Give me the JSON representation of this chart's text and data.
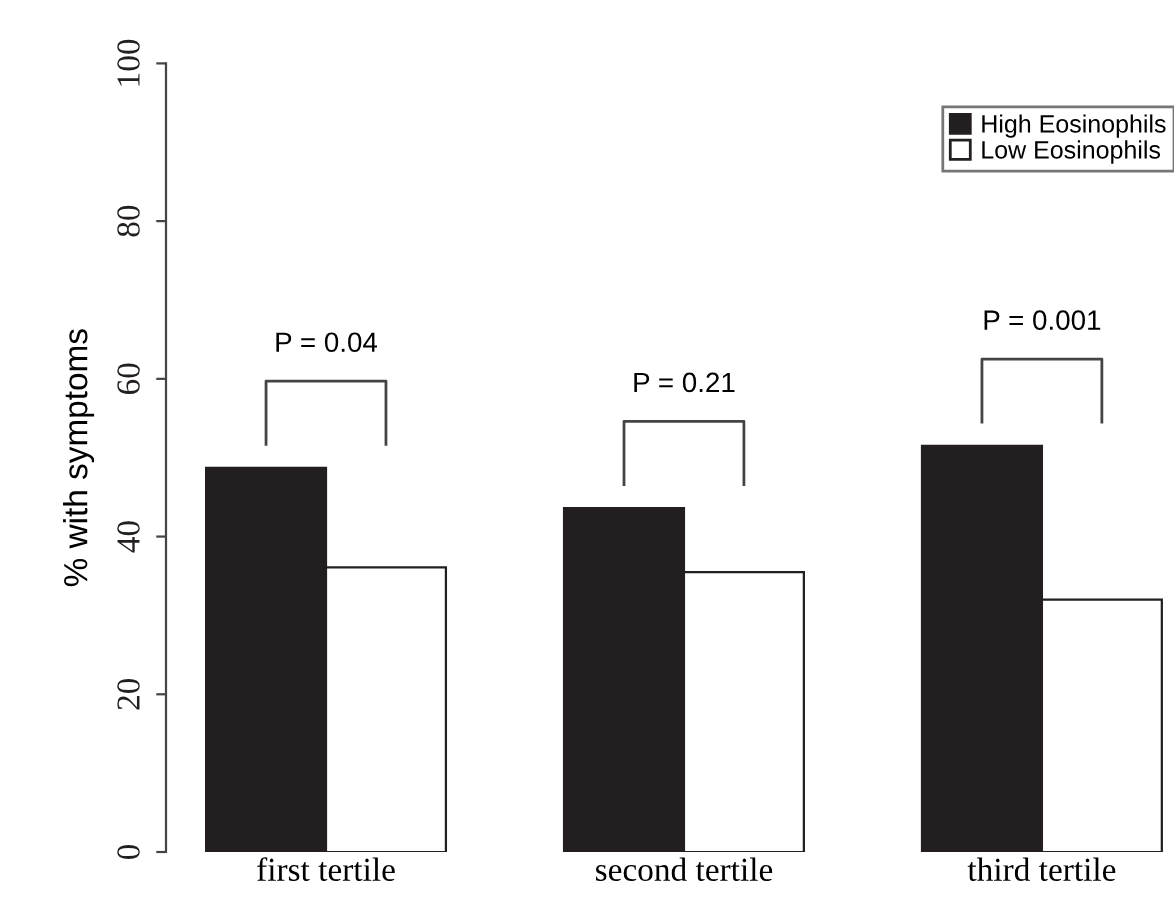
{
  "chart_data": {
    "type": "bar",
    "ylabel": "% with symptoms",
    "categories": [
      "first tertile",
      "second tertile",
      "third tertile"
    ],
    "series": [
      {
        "name": "High Eosinophils",
        "color": "#231f20",
        "values": [
          48.7,
          43.6,
          51.5
        ]
      },
      {
        "name": "Low Eosinophils",
        "color": "#ffffff",
        "values": [
          36.1,
          35.5,
          32.0
        ]
      }
    ],
    "ylim": [
      0,
      100
    ],
    "yticks": [
      0,
      20,
      40,
      60,
      80,
      100
    ],
    "grid": false,
    "legend": "top right",
    "annotations": [
      "P = 0.04",
      "P = 0.21",
      "P = 0.001"
    ]
  }
}
